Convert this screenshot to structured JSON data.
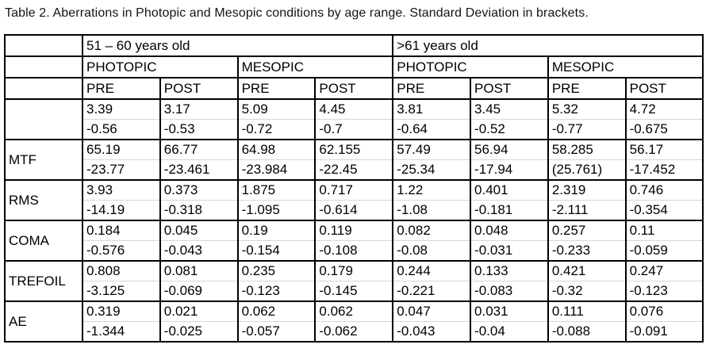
{
  "title": "Table 2. Aberrations in Photopic and Mesopic conditions by age range. Standard Deviation in brackets.",
  "table": {
    "age_groups": [
      "51 – 60 years old",
      ">61 years old"
    ],
    "conditions": [
      "PHOTOPIC",
      "MESOPIC",
      "PHOTOPIC",
      "MESOPIC"
    ],
    "phases": [
      "PRE",
      "POST",
      "PRE",
      "POST",
      "PRE",
      "POST",
      "PRE",
      "POST"
    ],
    "rows": [
      {
        "label": "",
        "means": [
          "3.39",
          "3.17",
          "5.09",
          "4.45",
          "3.81",
          "3.45",
          "5.32",
          "4.72"
        ],
        "sds": [
          "-0.56",
          "-0.53",
          "-0.72",
          "-0.7",
          "-0.64",
          "-0.52",
          "-0.77",
          "-0.675"
        ]
      },
      {
        "label": "MTF",
        "means": [
          "65.19",
          "66.77",
          "64.98",
          "62.155",
          "57.49",
          "56.94",
          "58.285",
          "56.17"
        ],
        "sds": [
          "-23.77",
          "-23.461",
          "-23.984",
          "-22.45",
          "-25.34",
          "-17.94",
          "(25.761)",
          "-17.452"
        ]
      },
      {
        "label": "RMS",
        "means": [
          "3.93",
          "0.373",
          "1.875",
          "0.717",
          "1.22",
          "0.401",
          "2.319",
          "0.746"
        ],
        "sds": [
          "-14.19",
          "-0.318",
          "-1.095",
          "-0.614",
          "-1.08",
          "-0.181",
          "-2.111",
          "-0.354"
        ]
      },
      {
        "label": "COMA",
        "means": [
          "0.184",
          "0.045",
          "0.19",
          "0.119",
          "0.082",
          "0.048",
          "0.257",
          "0.11"
        ],
        "sds": [
          "-0.576",
          "-0.043",
          "-0.154",
          "-0.108",
          "-0.08",
          "-0.031",
          "-0.233",
          "-0.059"
        ]
      },
      {
        "label": "TREFOIL",
        "means": [
          "0.808",
          "0.081",
          "0.235",
          "0.179",
          "0.244",
          "0.133",
          "0.421",
          "0.247"
        ],
        "sds": [
          "-3.125",
          "-0.069",
          "-0.123",
          "-0.145",
          "-0.221",
          "-0.083",
          "-0.32",
          "-0.123"
        ]
      },
      {
        "label": "AE",
        "means": [
          "0.319",
          "0.021",
          "0.062",
          "0.062",
          "0.047",
          "0.031",
          "0.111",
          "0.076"
        ],
        "sds": [
          "-1.344",
          "-0.025",
          "-0.057",
          "-0.062",
          "-0.043",
          "-0.04",
          "-0.088",
          "-0.091"
        ]
      }
    ]
  }
}
